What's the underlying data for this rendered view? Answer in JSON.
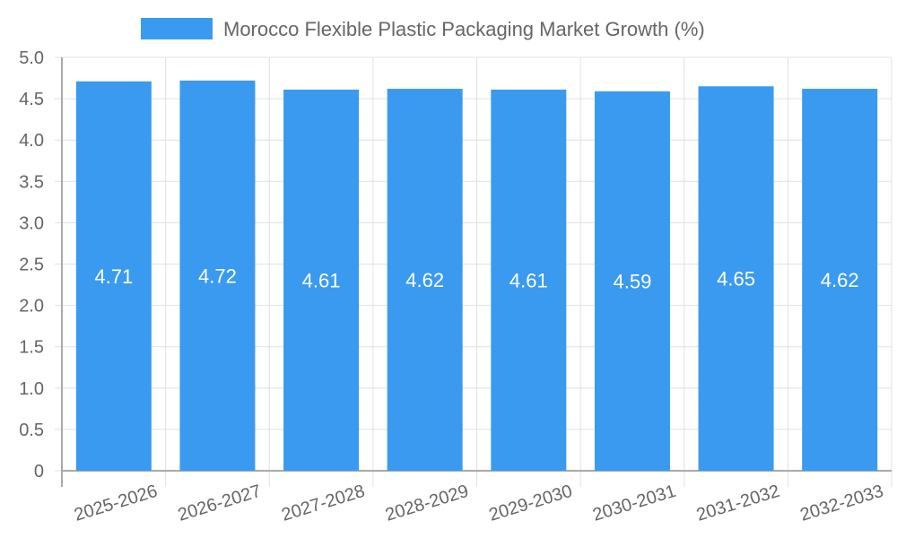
{
  "chart_data": {
    "type": "bar",
    "title": "",
    "xlabel": "",
    "ylabel": "",
    "categories": [
      "2025-2026",
      "2026-2027",
      "2027-2028",
      "2028-2029",
      "2029-2030",
      "2030-2031",
      "2031-2032",
      "2032-2033"
    ],
    "series": [
      {
        "name": "Morocco Flexible Plastic Packaging Market Growth (%)",
        "values": [
          4.71,
          4.72,
          4.61,
          4.62,
          4.61,
          4.59,
          4.65,
          4.62
        ],
        "color": "#3a9af0"
      }
    ],
    "ylim": [
      0,
      5.0
    ],
    "yticks": [
      "0",
      "0.5",
      "1.0",
      "1.5",
      "2.0",
      "2.5",
      "3.0",
      "3.5",
      "4.0",
      "4.5",
      "5.0"
    ],
    "grid": true,
    "legend_position": "top",
    "data_labels": true
  },
  "legend": {
    "label": "Morocco Flexible Plastic Packaging Market Growth (%)",
    "color": "#3a9af0"
  }
}
